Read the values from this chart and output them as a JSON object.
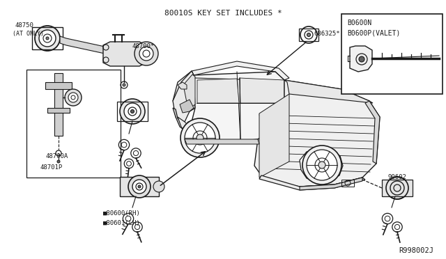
{
  "background_color": "#ffffff",
  "line_color": "#1a1a1a",
  "header_text": "80010S KEY SET INCLUDES *",
  "diagram_ref": "R998002J",
  "valet_box_labels": [
    "B0600N",
    "B0600P(VALET)"
  ],
  "fig_width": 6.4,
  "fig_height": 3.72,
  "dpi": 100
}
